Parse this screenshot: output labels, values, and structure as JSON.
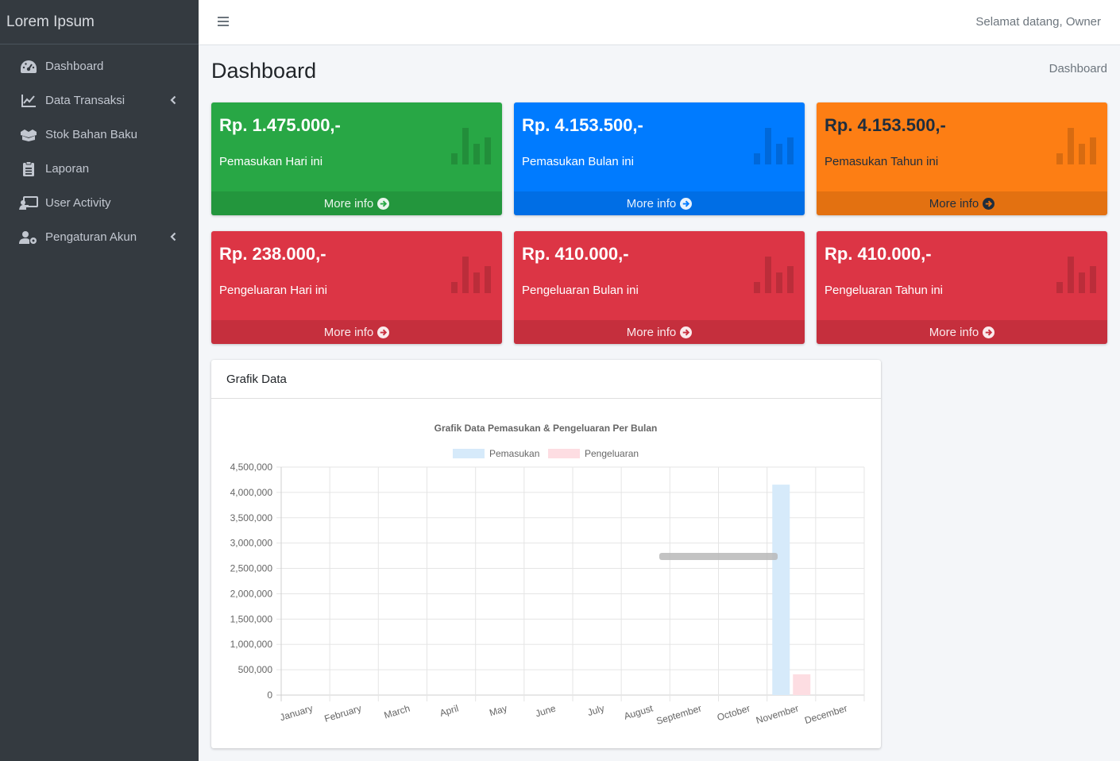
{
  "brand": "Lorem Ipsum",
  "sidebar": {
    "items": [
      {
        "label": "Dashboard",
        "icon": "tachometer-icon"
      },
      {
        "label": "Data Transaksi",
        "icon": "chart-line-icon",
        "has_children": true
      },
      {
        "label": "Stok Bahan Baku",
        "icon": "boxes-icon"
      },
      {
        "label": "Laporan",
        "icon": "clipboard-list-icon"
      },
      {
        "label": "User Activity",
        "icon": "chalkboard-teacher-icon"
      },
      {
        "label": "Pengaturan Akun",
        "icon": "user-cog-icon",
        "has_children": true
      }
    ]
  },
  "topbar": {
    "welcome": "Selamat datang, Owner"
  },
  "page": {
    "title": "Dashboard",
    "breadcrumb": "Dashboard"
  },
  "boxes": [
    {
      "amount": "Rp. 1.475.000,-",
      "label": "Pemasukan Hari ini",
      "more": "More info",
      "color": "#28a745"
    },
    {
      "amount": "Rp. 4.153.500,-",
      "label": "Pemasukan Bulan ini",
      "more": "More info",
      "color": "#007bff"
    },
    {
      "amount": "Rp. 4.153.500,-",
      "label": "Pemasukan Tahun ini",
      "more": "More info",
      "color": "#fd7e14"
    },
    {
      "amount": "Rp. 238.000,-",
      "label": "Pengeluaran Hari ini",
      "more": "More info",
      "color": "#dc3545"
    },
    {
      "amount": "Rp. 410.000,-",
      "label": "Pengeluaran Bulan ini",
      "more": "More info",
      "color": "#dc3545"
    },
    {
      "amount": "Rp. 410.000,-",
      "label": "Pengeluaran Tahun ini",
      "more": "More info",
      "color": "#dc3545"
    }
  ],
  "card": {
    "title": "Grafik Data"
  },
  "chart_data": {
    "type": "bar",
    "title": "Grafik Data Pemasukan & Pengeluaran Per Bulan",
    "categories": [
      "January",
      "February",
      "March",
      "April",
      "May",
      "June",
      "July",
      "August",
      "September",
      "October",
      "November",
      "December"
    ],
    "series": [
      {
        "name": "Pemasukan",
        "color": "#d6eafa",
        "values": [
          0,
          0,
          0,
          0,
          0,
          0,
          0,
          0,
          0,
          0,
          4153500,
          0
        ]
      },
      {
        "name": "Pengeluaran",
        "color": "#fddde2",
        "values": [
          0,
          0,
          0,
          0,
          0,
          0,
          0,
          0,
          0,
          0,
          410000,
          0
        ]
      }
    ],
    "ylim": [
      0,
      4500000
    ],
    "yticks": [
      "4,500,000",
      "4,000,000",
      "3,500,000",
      "3,000,000",
      "2,500,000",
      "2,000,000",
      "1,500,000",
      "1,000,000",
      "500,000",
      "0"
    ],
    "legend": "top",
    "grid": true
  }
}
